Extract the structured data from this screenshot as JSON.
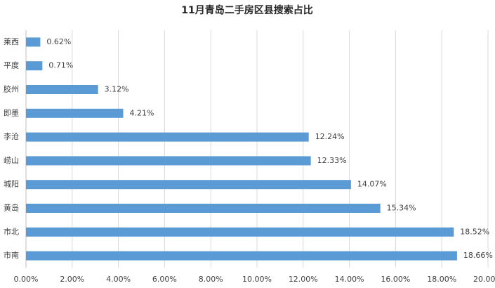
{
  "chart_data": {
    "type": "hbar",
    "title": "11月青岛二手房区县搜索占比",
    "categories": [
      "莱西",
      "平度",
      "胶州",
      "即墨",
      "李沧",
      "崂山",
      "城阳",
      "黄岛",
      "市北",
      "市南"
    ],
    "values": [
      0.62,
      0.71,
      3.12,
      4.21,
      12.24,
      12.33,
      14.07,
      15.34,
      18.52,
      18.66
    ],
    "value_labels": [
      "0.62%",
      "0.71%",
      "3.12%",
      "4.21%",
      "12.24%",
      "12.33%",
      "14.07%",
      "15.34%",
      "18.52%",
      "18.66%"
    ],
    "color": "#5b9bd5",
    "xlim": [
      0,
      20
    ],
    "xticks": [
      {
        "value": 0,
        "label": "0.00%"
      },
      {
        "value": 2,
        "label": "2.00%"
      },
      {
        "value": 4,
        "label": "4.00%"
      },
      {
        "value": 6,
        "label": "6.00%"
      },
      {
        "value": 8,
        "label": "8.00%"
      },
      {
        "value": 10,
        "label": "10.00%"
      },
      {
        "value": 12,
        "label": "12.00%"
      },
      {
        "value": 14,
        "label": "14.00%"
      },
      {
        "value": 16,
        "label": "16.00%"
      },
      {
        "value": 18,
        "label": "18.00%"
      },
      {
        "value": 20,
        "label": "20.00%"
      }
    ],
    "grid": true
  }
}
